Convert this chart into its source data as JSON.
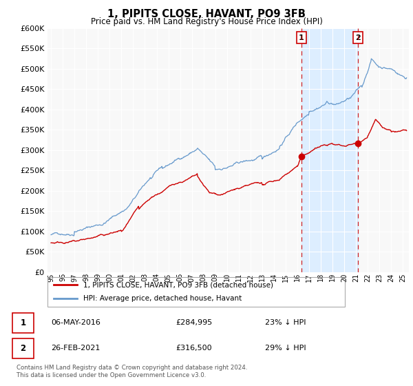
{
  "title": "1, PIPITS CLOSE, HAVANT, PO9 3FB",
  "subtitle": "Price paid vs. HM Land Registry's House Price Index (HPI)",
  "hpi_label": "HPI: Average price, detached house, Havant",
  "price_label": "1, PIPITS CLOSE, HAVANT, PO9 3FB (detached house)",
  "footnote": "Contains HM Land Registry data © Crown copyright and database right 2024.\nThis data is licensed under the Open Government Licence v3.0.",
  "hpi_color": "#6699cc",
  "price_color": "#cc0000",
  "shade_color": "#ddeeff",
  "annotation1": {
    "label": "1",
    "date_str": "06-MAY-2016",
    "value": 284995,
    "pct": "23% ↓ HPI",
    "year": 2016.35
  },
  "annotation2": {
    "label": "2",
    "date_str": "26-FEB-2021",
    "value": 316500,
    "pct": "29% ↓ HPI",
    "year": 2021.15
  },
  "ylim": [
    0,
    600000
  ],
  "yticks": [
    0,
    50000,
    100000,
    150000,
    200000,
    250000,
    300000,
    350000,
    400000,
    450000,
    500000,
    550000,
    600000
  ],
  "xlim_start": 1994.7,
  "xlim_end": 2025.5,
  "chart_bg": "#f8f8f8",
  "fig_bg": "#ffffff"
}
